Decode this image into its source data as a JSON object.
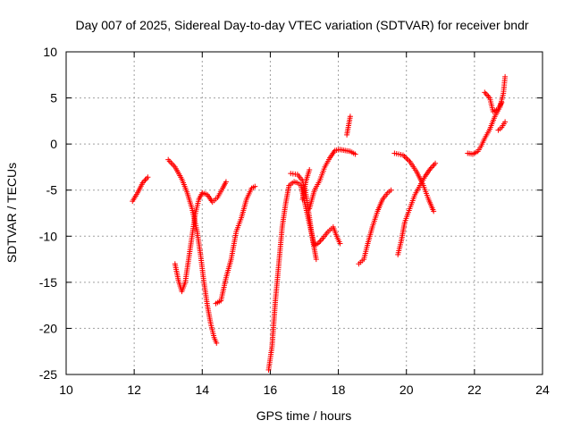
{
  "chart_data": {
    "type": "scatter",
    "title": "Day 007 of 2025, Sidereal Day-to-day VTEC variation (SDTVAR) for receiver bndr",
    "xlabel": "GPS time / hours",
    "ylabel": "SDTVAR / TECUs",
    "xlim": [
      10,
      24
    ],
    "ylim": [
      -25,
      10
    ],
    "xticks": [
      "10",
      "12",
      "14",
      "16",
      "18",
      "20",
      "22",
      "24"
    ],
    "yticks": [
      "10",
      "5",
      "0",
      "-5",
      "-10",
      "-15",
      "-20",
      "-25"
    ],
    "grid": true,
    "marker": "plus",
    "color": "#ff0000",
    "segments": [
      [
        [
          11.95,
          -6.2
        ],
        [
          12.1,
          -5.3
        ],
        [
          12.25,
          -4.2
        ],
        [
          12.4,
          -3.6
        ]
      ],
      [
        [
          13.0,
          -1.7
        ],
        [
          13.2,
          -2.5
        ],
        [
          13.4,
          -3.8
        ],
        [
          13.55,
          -5.2
        ],
        [
          13.7,
          -7.0
        ],
        [
          13.85,
          -9.5
        ],
        [
          13.95,
          -12.0
        ],
        [
          14.05,
          -15.0
        ],
        [
          14.15,
          -17.5
        ],
        [
          14.25,
          -19.5
        ],
        [
          14.35,
          -21.0
        ],
        [
          14.42,
          -21.6
        ]
      ],
      [
        [
          13.2,
          -13.0
        ],
        [
          13.3,
          -14.8
        ],
        [
          13.4,
          -16.0
        ],
        [
          13.5,
          -15.0
        ],
        [
          13.6,
          -12.5
        ],
        [
          13.7,
          -10.0
        ],
        [
          13.8,
          -7.5
        ],
        [
          13.9,
          -6.0
        ],
        [
          14.0,
          -5.3
        ],
        [
          14.15,
          -5.5
        ],
        [
          14.3,
          -6.3
        ],
        [
          14.45,
          -5.8
        ],
        [
          14.6,
          -4.8
        ],
        [
          14.7,
          -4.1
        ]
      ],
      [
        [
          14.4,
          -17.3
        ],
        [
          14.55,
          -17.0
        ],
        [
          14.7,
          -14.5
        ],
        [
          14.85,
          -12.5
        ],
        [
          15.0,
          -9.5
        ],
        [
          15.15,
          -8.0
        ],
        [
          15.3,
          -6.0
        ],
        [
          15.45,
          -4.8
        ],
        [
          15.55,
          -4.6
        ]
      ],
      [
        [
          15.95,
          -24.5
        ],
        [
          16.05,
          -22.0
        ],
        [
          16.15,
          -17.0
        ],
        [
          16.25,
          -13.0
        ],
        [
          16.35,
          -9.0
        ],
        [
          16.45,
          -6.5
        ],
        [
          16.55,
          -4.5
        ],
        [
          16.7,
          -4.1
        ],
        [
          16.8,
          -4.2
        ],
        [
          16.9,
          -4.5
        ],
        [
          17.05,
          -7.0
        ],
        [
          17.2,
          -9.5
        ],
        [
          17.3,
          -11.0
        ],
        [
          17.4,
          -10.8
        ],
        [
          17.55,
          -10.2
        ],
        [
          17.7,
          -9.5
        ],
        [
          17.85,
          -9.0
        ],
        [
          17.95,
          -10.0
        ],
        [
          18.05,
          -10.8
        ]
      ],
      [
        [
          16.6,
          -3.2
        ],
        [
          16.8,
          -3.3
        ],
        [
          16.95,
          -4.0
        ],
        [
          17.05,
          -5.5
        ],
        [
          17.15,
          -8.0
        ],
        [
          17.25,
          -10.5
        ],
        [
          17.35,
          -12.5
        ]
      ],
      [
        [
          16.95,
          -6.0
        ],
        [
          17.05,
          -4.0
        ],
        [
          17.15,
          -2.8
        ]
      ],
      [
        [
          17.15,
          -7.0
        ],
        [
          17.3,
          -5.0
        ],
        [
          17.45,
          -4.0
        ],
        [
          17.6,
          -2.5
        ],
        [
          17.75,
          -1.5
        ],
        [
          17.9,
          -0.7
        ],
        [
          18.05,
          -0.6
        ],
        [
          18.2,
          -0.7
        ],
        [
          18.35,
          -0.8
        ],
        [
          18.5,
          -1.1
        ]
      ],
      [
        [
          18.25,
          1.0
        ],
        [
          18.3,
          2.0
        ],
        [
          18.35,
          3.0
        ]
      ],
      [
        [
          18.6,
          -13.0
        ],
        [
          18.75,
          -12.5
        ],
        [
          18.85,
          -11.0
        ],
        [
          19.0,
          -9.0
        ],
        [
          19.15,
          -7.3
        ],
        [
          19.3,
          -6.0
        ],
        [
          19.45,
          -5.3
        ],
        [
          19.55,
          -5.0
        ]
      ],
      [
        [
          19.65,
          -1.0
        ],
        [
          19.9,
          -1.2
        ],
        [
          20.1,
          -1.9
        ],
        [
          20.3,
          -3.0
        ],
        [
          20.5,
          -4.5
        ],
        [
          20.65,
          -6.0
        ],
        [
          20.8,
          -7.3
        ]
      ],
      [
        [
          19.75,
          -12.0
        ],
        [
          19.85,
          -10.5
        ],
        [
          19.95,
          -8.5
        ],
        [
          20.1,
          -7.0
        ],
        [
          20.25,
          -5.5
        ],
        [
          20.4,
          -4.5
        ],
        [
          20.55,
          -3.5
        ],
        [
          20.7,
          -2.7
        ],
        [
          20.85,
          -2.1
        ]
      ],
      [
        [
          21.8,
          -1.0
        ],
        [
          21.95,
          -1.1
        ],
        [
          22.1,
          -0.8
        ],
        [
          22.2,
          -0.2
        ],
        [
          22.3,
          0.6
        ],
        [
          22.45,
          1.6
        ],
        [
          22.6,
          3.0
        ],
        [
          22.75,
          4.0
        ],
        [
          22.85,
          5.5
        ],
        [
          22.9,
          7.3
        ]
      ],
      [
        [
          22.3,
          5.6
        ],
        [
          22.45,
          5.0
        ],
        [
          22.55,
          3.5
        ],
        [
          22.7,
          3.8
        ],
        [
          22.8,
          4.5
        ]
      ],
      [
        [
          22.7,
          1.5
        ],
        [
          22.8,
          1.8
        ],
        [
          22.9,
          2.4
        ]
      ]
    ]
  }
}
